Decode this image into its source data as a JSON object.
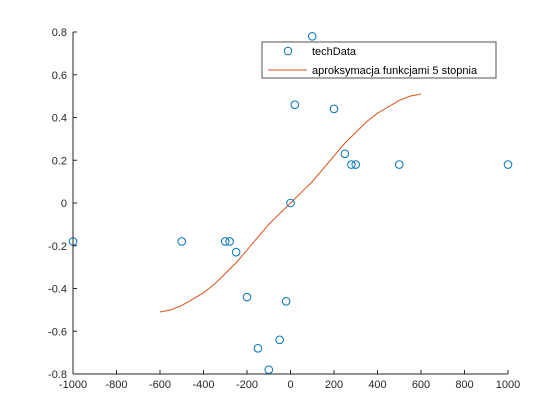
{
  "chart_data": {
    "type": "scatter",
    "xlim": [
      -1000,
      1000
    ],
    "ylim": [
      -0.8,
      0.8
    ],
    "x_ticks": [
      -1000,
      -800,
      -600,
      -400,
      -200,
      0,
      200,
      400,
      600,
      800,
      1000
    ],
    "x_tick_labels": [
      "-1000",
      "-800",
      "-600",
      "-400",
      "-200",
      "0",
      "200",
      "400",
      "600",
      "800",
      "1000"
    ],
    "y_ticks": [
      -0.8,
      -0.6,
      -0.4,
      -0.2,
      0,
      0.2,
      0.4,
      0.6,
      0.8
    ],
    "y_tick_labels": [
      "-0.8",
      "-0.6",
      "-0.4",
      "-0.2",
      "0",
      "0.2",
      "0.4",
      "0.6",
      "0.8"
    ],
    "grid": false,
    "legend_position": "top-right",
    "series": [
      {
        "name": "techData",
        "kind": "markers",
        "marker": "circle",
        "color": "#0072BD",
        "x": [
          -1000,
          -500,
          -300,
          -280,
          -250,
          -200,
          -150,
          -100,
          -50,
          -20,
          0,
          20,
          100,
          200,
          250,
          280,
          300,
          500,
          1000
        ],
        "y": [
          -0.18,
          -0.18,
          -0.18,
          -0.18,
          -0.23,
          -0.44,
          -0.68,
          -0.78,
          -0.64,
          -0.46,
          0.0,
          0.46,
          0.78,
          0.44,
          0.23,
          0.18,
          0.18,
          0.18,
          0.18
        ]
      },
      {
        "name": "aproksymacja funkcjami 5 stopnia",
        "kind": "line",
        "color": "#D95319",
        "x": [
          -600,
          -550,
          -500,
          -450,
          -400,
          -350,
          -300,
          -250,
          -200,
          -150,
          -100,
          -50,
          0,
          50,
          100,
          150,
          200,
          250,
          300,
          350,
          400,
          450,
          500,
          550,
          600
        ],
        "y": [
          -0.51,
          -0.5,
          -0.48,
          -0.45,
          -0.42,
          -0.38,
          -0.33,
          -0.28,
          -0.22,
          -0.16,
          -0.1,
          -0.05,
          0.0,
          0.05,
          0.1,
          0.16,
          0.22,
          0.28,
          0.33,
          0.38,
          0.42,
          0.45,
          0.48,
          0.5,
          0.51
        ]
      }
    ]
  }
}
